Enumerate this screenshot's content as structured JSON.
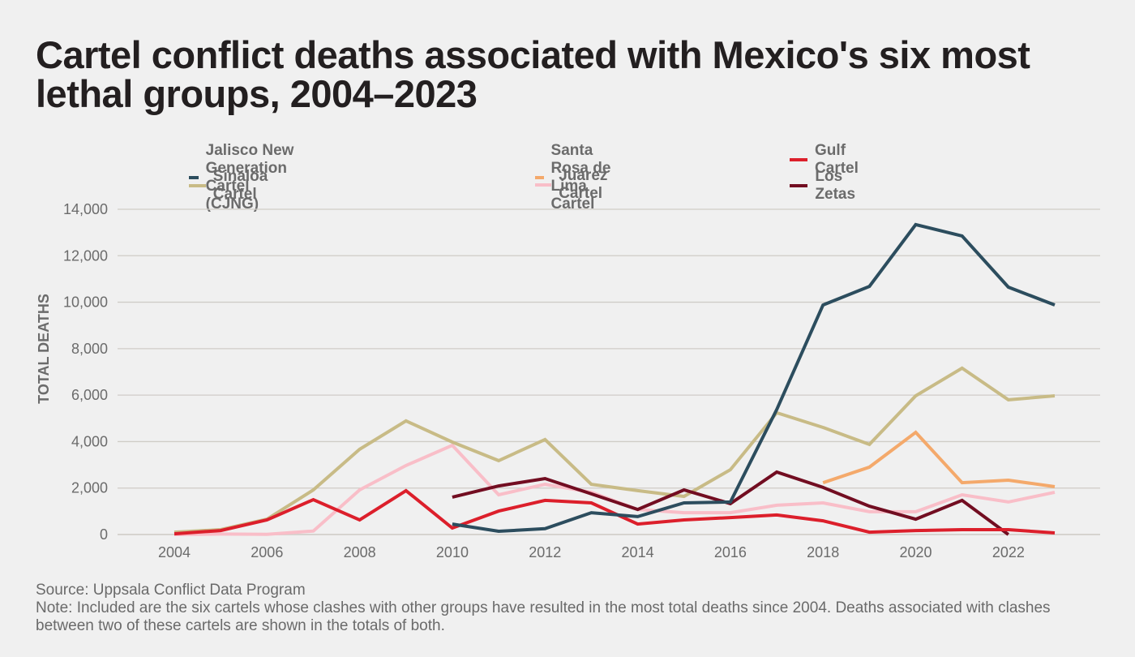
{
  "title": "Cartel conflict deaths associated with Mexico's six most lethal groups, 2004–2023",
  "source": "Source: Uppsala Conflict Data Program",
  "note": "Note: Included are the six cartels whose clashes with other groups have resulted in the most total deaths since 2004. Deaths associated with clashes between two of these cartels are shown in the totals of both.",
  "chart_data": {
    "type": "line",
    "title": "Cartel conflict deaths associated with Mexico's six most lethal groups, 2004–2023",
    "xlabel": "",
    "ylabel": "TOTAL DEATHS",
    "x": [
      2004,
      2005,
      2006,
      2007,
      2008,
      2009,
      2010,
      2011,
      2012,
      2013,
      2014,
      2015,
      2016,
      2017,
      2018,
      2019,
      2020,
      2021,
      2022,
      2023
    ],
    "xlim": [
      2004,
      2023
    ],
    "ylim": [
      0,
      14000
    ],
    "x_ticks": [
      "2004",
      "2006",
      "2008",
      "2010",
      "2012",
      "2014",
      "2016",
      "2018",
      "2020",
      "2022"
    ],
    "x_tick_values": [
      2004,
      2006,
      2008,
      2010,
      2012,
      2014,
      2016,
      2018,
      2020,
      2022
    ],
    "y_ticks": [
      "0",
      "2,000",
      "4,000",
      "6,000",
      "8,000",
      "10,000",
      "12,000",
      "14,000"
    ],
    "y_tick_values": [
      0,
      2000,
      4000,
      6000,
      8000,
      10000,
      12000,
      14000
    ],
    "grid": true,
    "legend_position": "top",
    "series": [
      {
        "name": "Jalisco New Generation Cartel (CJNG)",
        "color": "#2c4d5e",
        "values": [
          null,
          null,
          null,
          null,
          null,
          null,
          450,
          140,
          250,
          940,
          770,
          1360,
          1400,
          5380,
          9880,
          10680,
          13340,
          12850,
          10650,
          9880
        ]
      },
      {
        "name": "Sinaloa Cartel",
        "color": "#c8bb86",
        "values": [
          100,
          210,
          660,
          1920,
          3670,
          4890,
          3980,
          3180,
          4090,
          2160,
          1890,
          1640,
          2790,
          5240,
          4610,
          3880,
          5970,
          7160,
          5800,
          5970
        ]
      },
      {
        "name": "Santa Rosa de Lima Cartel",
        "color": "#f4a96b",
        "values": [
          null,
          null,
          null,
          null,
          null,
          null,
          null,
          null,
          null,
          null,
          null,
          null,
          null,
          null,
          2230,
          2900,
          4400,
          2230,
          2340,
          2060
        ]
      },
      {
        "name": "Juarez Cartel",
        "color": "#f9bec8",
        "values": [
          0,
          20,
          10,
          150,
          1920,
          2970,
          3840,
          1710,
          2160,
          1820,
          1080,
          940,
          940,
          1260,
          1360,
          980,
          980,
          1710,
          1400,
          1820
        ]
      },
      {
        "name": "Gulf Cartel",
        "color": "#dc1f2b",
        "values": [
          30,
          170,
          630,
          1500,
          630,
          1890,
          280,
          1010,
          1470,
          1360,
          450,
          630,
          730,
          840,
          590,
          100,
          170,
          210,
          210,
          70
        ]
      },
      {
        "name": "Los Zetas",
        "color": "#720d21",
        "values": [
          null,
          null,
          null,
          null,
          null,
          null,
          1610,
          2090,
          2410,
          1750,
          1080,
          1920,
          1330,
          2690,
          2030,
          1220,
          660,
          1470,
          0,
          null
        ]
      }
    ]
  },
  "legend": {
    "items": [
      {
        "label": "Jalisco New Generation Cartel (CJNG)",
        "color": "#2c4d5e"
      },
      {
        "label": "Sinaloa Cartel",
        "color": "#c8bb86"
      },
      {
        "label": "Santa Rosa de Lima Cartel",
        "color": "#f4a96b"
      },
      {
        "label": "Juarez Cartel",
        "color": "#f9bec8"
      },
      {
        "label": "Gulf Cartel",
        "color": "#dc1f2b"
      },
      {
        "label": "Los Zetas",
        "color": "#720d21"
      }
    ]
  }
}
